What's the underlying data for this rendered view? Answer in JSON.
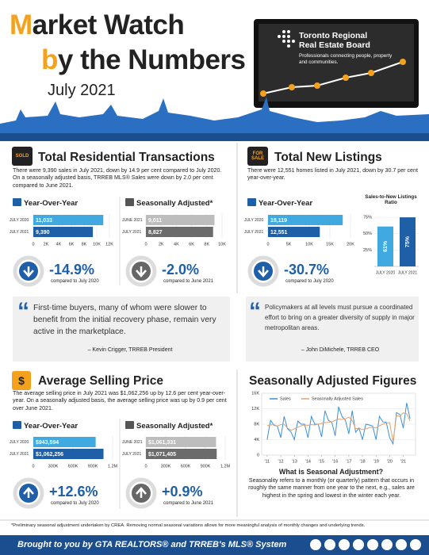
{
  "header": {
    "title_line1": "Market Watch",
    "title_line2": "by the Numbers",
    "period": "July 2021",
    "logo_name": "Toronto Regional Real Estate Board",
    "logo_tagline": "Professionals connecting people, property and communities."
  },
  "panels": [
    {
      "icon": "SOLD",
      "title": "Total Residential Transactions",
      "description": "There were 9,390 sales in July 2021, down by 14.9 per cent compared to July 2020. On a seasonally adjusted basis, TRREB MLS® Sales were down by 2.0 per cent compared to June 2021.",
      "stats": [
        {
          "value": "-14.9%",
          "note": "compared to July 2020"
        },
        {
          "value": "-2.0%",
          "note": "compared to June 2021"
        }
      ]
    },
    {
      "icon": "FOR SALE",
      "title": "Total New Listings",
      "description": "There were 12,551 homes listed in July 2021, down by 30.7 per cent year-over-year.",
      "stats": [
        {
          "value": "-30.7%",
          "note": "compared to July 2020"
        }
      ]
    },
    {
      "icon": "$",
      "title": "Average Selling Price",
      "description": "The average selling price in July 2021 was $1,062,256 up by 12.6 per cent year-over-year. On a seasonally adjusted basis, the average selling price was up by 0.9 per cent over June 2021.",
      "stats": [
        {
          "value": "+12.6%",
          "note": "compared to July 2020"
        },
        {
          "value": "+0.9%",
          "note": "compared to June 2021"
        }
      ]
    },
    {
      "title": "Seasonally Adjusted Figures",
      "subtitle": "What is Seasonal Adjustment?",
      "description": "Seasonality refers to a monthly (or quarterly) pattern that occurs in roughly the same manner from one year to the next, e.g., sales are highest in the spring and lowest in the winter each year."
    }
  ],
  "quotes": [
    {
      "text": "First-time buyers, many of whom were slower to benefit from the initial recovery phase, remain very active in the marketplace.",
      "author": "– Kevin Crigger, TRREB President"
    },
    {
      "text": "Policymakers at all levels must pursue a coordinated effort to bring on a greater diversity of supply in major metropolitan areas.",
      "author": "– John DiMichele, TRREB CEO"
    }
  ],
  "footer": {
    "note": "*Preliminary seasonal adjustment undertaken by CREA. Removing normal seasonal variations allows for more meaningful analysis of monthly changes and underlying trends.",
    "credit": "Brought to you by GTA REALTORS® and TRREB's MLS® System"
  },
  "chart_data": [
    {
      "type": "hbar",
      "title": "Year-Over-Year",
      "categories": [
        "JULY 2020",
        "JULY 2021"
      ],
      "values": [
        11033,
        9390
      ],
      "value_labels": [
        "11,033",
        "9,390"
      ],
      "colors": [
        "#3fa9e0",
        "#1f5fa8"
      ],
      "xlim": [
        0,
        12000
      ],
      "xticks": [
        0,
        {
          "value": 2000,
          "label": "2K"
        },
        {
          "value": 4000,
          "label": "4K"
        },
        {
          "value": 6000,
          "label": "6K"
        },
        {
          "value": 8000,
          "label": "8K"
        },
        {
          "value": 10000,
          "label": "10K"
        },
        {
          "value": 12000,
          "label": "12K"
        }
      ],
      "grid": true
    },
    {
      "type": "hbar",
      "title": "Seasonally Adjusted*",
      "categories": [
        "JUNE 2021",
        "JULY 2021"
      ],
      "values": [
        9011,
        8827
      ],
      "value_labels": [
        "9,011",
        "8,827"
      ],
      "colors": [
        "#bdbdbd",
        "#6b6b6b"
      ],
      "xlim": [
        0,
        10000
      ],
      "xticks": [
        0,
        {
          "value": 2000,
          "label": "2K"
        },
        {
          "value": 4000,
          "label": "4K"
        },
        {
          "value": 6000,
          "label": "6K"
        },
        {
          "value": 8000,
          "label": "8K"
        },
        {
          "value": 10000,
          "label": "10K"
        }
      ],
      "grid": true
    },
    {
      "type": "hbar",
      "title": "Year-Over-Year",
      "categories": [
        "JULY 2020",
        "JULY 2021"
      ],
      "values": [
        18119,
        12551
      ],
      "value_labels": [
        "18,119",
        "12,551"
      ],
      "colors": [
        "#3fa9e0",
        "#1f5fa8"
      ],
      "xlim": [
        0,
        20000
      ],
      "xticks": [
        0,
        {
          "value": 5000,
          "label": "5K"
        },
        {
          "value": 10000,
          "label": "10K"
        },
        {
          "value": 15000,
          "label": "15K"
        },
        {
          "value": 20000,
          "label": "20K"
        }
      ],
      "grid": true
    },
    {
      "type": "vbar",
      "title": "Sales-to-New Listings Ratio",
      "categories": [
        "JULY 2020",
        "JULY 2021"
      ],
      "values": [
        61,
        75
      ],
      "value_labels": [
        "61%",
        "75%"
      ],
      "colors": [
        "#3fa9e0",
        "#1f5fa8"
      ],
      "ylim": [
        0,
        80
      ],
      "yticks": [
        {
          "value": 25,
          "label": "25%"
        },
        {
          "value": 50,
          "label": "50%"
        },
        {
          "value": 75,
          "label": "75%"
        }
      ],
      "grid": true
    },
    {
      "type": "hbar",
      "title": "Year-Over-Year",
      "categories": [
        "JULY 2020",
        "JULY 2021"
      ],
      "values": [
        943594,
        1062256
      ],
      "value_labels": [
        "$943,594",
        "$1,062,256"
      ],
      "colors": [
        "#3fa9e0",
        "#1f5fa8"
      ],
      "xlim": [
        0,
        1200000
      ],
      "xticks": [
        0,
        {
          "value": 300000,
          "label": "300K"
        },
        {
          "value": 600000,
          "label": "600K"
        },
        {
          "value": 900000,
          "label": "900K"
        },
        {
          "value": 1200000,
          "label": "1.2M"
        }
      ],
      "grid": true
    },
    {
      "type": "hbar",
      "title": "Seasonally Adjusted*",
      "categories": [
        "JUNE 2021",
        "JULY 2021"
      ],
      "values": [
        1061331,
        1071405
      ],
      "value_labels": [
        "$1,061,331",
        "$1,071,405"
      ],
      "colors": [
        "#bdbdbd",
        "#6b6b6b"
      ],
      "xlim": [
        0,
        1200000
      ],
      "xticks": [
        0,
        {
          "value": 300000,
          "label": "300K"
        },
        {
          "value": 600000,
          "label": "600K"
        },
        {
          "value": 900000,
          "label": "900K"
        },
        {
          "value": 1200000,
          "label": "1.2M"
        }
      ],
      "grid": true
    },
    {
      "type": "line",
      "legend": "top",
      "grid": true,
      "x": [
        2011,
        2011.25,
        2011.5,
        2011.75,
        2012,
        2012.25,
        2012.5,
        2012.75,
        2013,
        2013.25,
        2013.5,
        2013.75,
        2014,
        2014.25,
        2014.5,
        2014.75,
        2015,
        2015.25,
        2015.5,
        2015.75,
        2016,
        2016.25,
        2016.5,
        2016.75,
        2017,
        2017.25,
        2017.5,
        2017.75,
        2018,
        2018.25,
        2018.5,
        2018.75,
        2019,
        2019.25,
        2019.5,
        2019.75,
        2020,
        2020.25,
        2020.5,
        2020.75,
        2021,
        2021.25,
        2021.5
      ],
      "series": [
        {
          "name": "Sales",
          "color": "#3b8fd9",
          "values": [
            4000,
            9000,
            7700,
            7500,
            4500,
            10000,
            6800,
            6000,
            4000,
            8800,
            8000,
            8000,
            4500,
            10000,
            8000,
            8000,
            4700,
            11500,
            9000,
            8500,
            5000,
            12500,
            10000,
            9000,
            5500,
            11500,
            5900,
            7000,
            4000,
            8000,
            7800,
            7500,
            4000,
            10000,
            8600,
            8500,
            4500,
            2900,
            11000,
            10500,
            7000,
            13500,
            9400
          ]
        },
        {
          "name": "Seasonally Adjusted Sales",
          "color": "#e8a06a",
          "values": [
            7600,
            7800,
            7900,
            7500,
            7900,
            8000,
            7000,
            6400,
            6800,
            7200,
            7600,
            7800,
            7700,
            7900,
            7800,
            8000,
            8200,
            8400,
            8500,
            8600,
            9000,
            9300,
            9200,
            9400,
            9800,
            9000,
            6800,
            7000,
            6600,
            6800,
            7100,
            7200,
            7000,
            7600,
            8000,
            8300,
            8400,
            3400,
            10200,
            10000,
            10900,
            10700,
            8800
          ]
        }
      ],
      "xlim": [
        2010.6,
        2021.9
      ],
      "xticks": [
        {
          "value": 2011,
          "label": "'11"
        },
        {
          "value": 2012,
          "label": "'12"
        },
        {
          "value": 2013,
          "label": "'13"
        },
        {
          "value": 2014,
          "label": "'14"
        },
        {
          "value": 2015,
          "label": "'15"
        },
        {
          "value": 2016,
          "label": "'16"
        },
        {
          "value": 2017,
          "label": "'17"
        },
        {
          "value": 2018,
          "label": "'18"
        },
        {
          "value": 2019,
          "label": "'19"
        },
        {
          "value": 2020,
          "label": "'20"
        },
        {
          "value": 2021,
          "label": "'21"
        }
      ],
      "ylim": [
        0,
        16000
      ],
      "yticks": [
        0,
        {
          "value": 4000,
          "label": "4K"
        },
        {
          "value": 8000,
          "label": "8K"
        },
        {
          "value": 12000,
          "label": "12K"
        },
        {
          "value": 16000,
          "label": "16K"
        }
      ]
    }
  ]
}
